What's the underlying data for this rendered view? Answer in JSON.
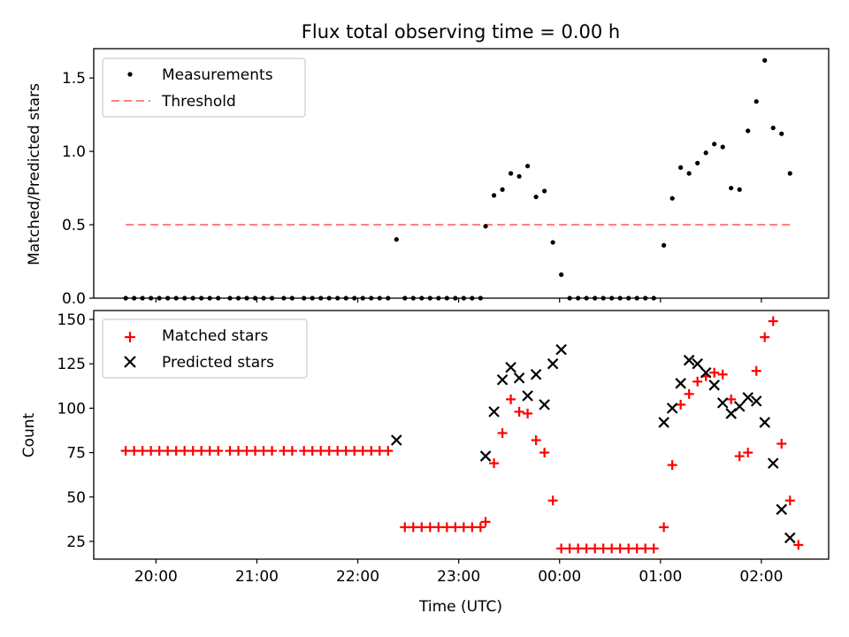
{
  "chart_data": [
    {
      "type": "scatter",
      "title": "Flux total observing time = 0.00 h",
      "ylabel": "Matched/Predicted stars",
      "xlabel": "",
      "ylim": [
        0,
        1.7
      ],
      "xlim": [
        "19:23",
        "02:40"
      ],
      "yticks": [
        0.0,
        0.5,
        1.0,
        1.5
      ],
      "ytick_labels": [
        "0.0",
        "0.5",
        "1.0",
        "1.5"
      ],
      "legend": {
        "placement": "upper-left",
        "entries": [
          "Measurements",
          "Threshold"
        ]
      },
      "threshold": {
        "name": "Threshold",
        "value": 0.5,
        "x_start": "19:42",
        "x_end": "02:17",
        "color": "#ff8080"
      },
      "series": [
        {
          "name": "Measurements",
          "color": "#000000",
          "points": [
            [
              "19:42",
              0.0
            ],
            [
              "19:47",
              0.0
            ],
            [
              "19:52",
              0.0
            ],
            [
              "19:57",
              0.0
            ],
            [
              "20:02",
              0.0
            ],
            [
              "20:07",
              0.0
            ],
            [
              "20:12",
              0.0
            ],
            [
              "20:17",
              0.0
            ],
            [
              "20:22",
              0.0
            ],
            [
              "20:27",
              0.0
            ],
            [
              "20:32",
              0.0
            ],
            [
              "20:37",
              0.0
            ],
            [
              "20:44",
              0.0
            ],
            [
              "20:49",
              0.0
            ],
            [
              "20:54",
              0.0
            ],
            [
              "20:59",
              0.0
            ],
            [
              "21:04",
              0.0
            ],
            [
              "21:09",
              0.0
            ],
            [
              "21:16",
              0.0
            ],
            [
              "21:21",
              0.0
            ],
            [
              "21:28",
              0.0
            ],
            [
              "21:33",
              0.0
            ],
            [
              "21:38",
              0.0
            ],
            [
              "21:43",
              0.0
            ],
            [
              "21:48",
              0.0
            ],
            [
              "21:53",
              0.0
            ],
            [
              "21:58",
              0.0
            ],
            [
              "22:03",
              0.0
            ],
            [
              "22:08",
              0.0
            ],
            [
              "22:13",
              0.0
            ],
            [
              "22:18",
              0.0
            ],
            [
              "22:23",
              0.4
            ],
            [
              "22:28",
              0.0
            ],
            [
              "22:33",
              0.0
            ],
            [
              "22:38",
              0.0
            ],
            [
              "22:43",
              0.0
            ],
            [
              "22:48",
              0.0
            ],
            [
              "22:53",
              0.0
            ],
            [
              "22:58",
              0.0
            ],
            [
              "23:03",
              0.0
            ],
            [
              "23:08",
              0.0
            ],
            [
              "23:13",
              0.0
            ],
            [
              "23:16",
              0.49
            ],
            [
              "23:21",
              0.7
            ],
            [
              "23:26",
              0.74
            ],
            [
              "23:31",
              0.85
            ],
            [
              "23:36",
              0.83
            ],
            [
              "23:41",
              0.9
            ],
            [
              "23:46",
              0.69
            ],
            [
              "23:51",
              0.73
            ],
            [
              "23:56",
              0.38
            ],
            [
              "00:01",
              0.16
            ],
            [
              "00:06",
              0.0
            ],
            [
              "00:11",
              0.0
            ],
            [
              "00:16",
              0.0
            ],
            [
              "00:21",
              0.0
            ],
            [
              "00:26",
              0.0
            ],
            [
              "00:31",
              0.0
            ],
            [
              "00:36",
              0.0
            ],
            [
              "00:41",
              0.0
            ],
            [
              "00:46",
              0.0
            ],
            [
              "00:51",
              0.0
            ],
            [
              "00:56",
              0.0
            ],
            [
              "01:02",
              0.36
            ],
            [
              "01:07",
              0.68
            ],
            [
              "01:12",
              0.89
            ],
            [
              "01:17",
              0.85
            ],
            [
              "01:22",
              0.92
            ],
            [
              "01:27",
              0.99
            ],
            [
              "01:32",
              1.05
            ],
            [
              "01:37",
              1.03
            ],
            [
              "01:42",
              0.75
            ],
            [
              "01:47",
              0.74
            ],
            [
              "01:52",
              1.14
            ],
            [
              "01:57",
              1.34
            ],
            [
              "02:02",
              1.62
            ],
            [
              "02:07",
              1.16
            ],
            [
              "02:12",
              1.12
            ],
            [
              "02:17",
              0.85
            ]
          ]
        }
      ]
    },
    {
      "type": "scatter",
      "title": "",
      "ylabel": "Count",
      "xlabel": "Time (UTC)",
      "ylim": [
        15,
        155
      ],
      "xlim": [
        "19:23",
        "02:40"
      ],
      "yticks": [
        25,
        50,
        75,
        100,
        125,
        150
      ],
      "ytick_labels": [
        "25",
        "50",
        "75",
        "100",
        "125",
        "150"
      ],
      "xticks": [
        "20:00",
        "21:00",
        "22:00",
        "23:00",
        "00:00",
        "01:00",
        "02:00"
      ],
      "xtick_labels": [
        "20:00",
        "21:00",
        "22:00",
        "23:00",
        "00:00",
        "01:00",
        "02:00"
      ],
      "legend": {
        "placement": "upper-left",
        "entries": [
          "Matched stars",
          "Predicted stars"
        ]
      },
      "series": [
        {
          "name": "Matched stars",
          "marker": "plus",
          "color": "#ff0000",
          "points": [
            [
              "19:42",
              76
            ],
            [
              "19:47",
              76
            ],
            [
              "19:52",
              76
            ],
            [
              "19:57",
              76
            ],
            [
              "20:02",
              76
            ],
            [
              "20:07",
              76
            ],
            [
              "20:12",
              76
            ],
            [
              "20:17",
              76
            ],
            [
              "20:22",
              76
            ],
            [
              "20:27",
              76
            ],
            [
              "20:32",
              76
            ],
            [
              "20:37",
              76
            ],
            [
              "20:44",
              76
            ],
            [
              "20:49",
              76
            ],
            [
              "20:54",
              76
            ],
            [
              "20:59",
              76
            ],
            [
              "21:04",
              76
            ],
            [
              "21:09",
              76
            ],
            [
              "21:16",
              76
            ],
            [
              "21:21",
              76
            ],
            [
              "21:28",
              76
            ],
            [
              "21:33",
              76
            ],
            [
              "21:38",
              76
            ],
            [
              "21:43",
              76
            ],
            [
              "21:48",
              76
            ],
            [
              "21:53",
              76
            ],
            [
              "21:58",
              76
            ],
            [
              "22:03",
              76
            ],
            [
              "22:08",
              76
            ],
            [
              "22:13",
              76
            ],
            [
              "22:18",
              76
            ],
            [
              "22:28",
              33
            ],
            [
              "22:33",
              33
            ],
            [
              "22:38",
              33
            ],
            [
              "22:43",
              33
            ],
            [
              "22:48",
              33
            ],
            [
              "22:53",
              33
            ],
            [
              "22:58",
              33
            ],
            [
              "23:03",
              33
            ],
            [
              "23:08",
              33
            ],
            [
              "23:13",
              33
            ],
            [
              "23:16",
              36
            ],
            [
              "23:21",
              69
            ],
            [
              "23:26",
              86
            ],
            [
              "23:31",
              105
            ],
            [
              "23:36",
              98
            ],
            [
              "23:41",
              97
            ],
            [
              "23:46",
              82
            ],
            [
              "23:51",
              75
            ],
            [
              "23:56",
              48
            ],
            [
              "00:01",
              21
            ],
            [
              "00:06",
              21
            ],
            [
              "00:11",
              21
            ],
            [
              "00:16",
              21
            ],
            [
              "00:21",
              21
            ],
            [
              "00:26",
              21
            ],
            [
              "00:31",
              21
            ],
            [
              "00:36",
              21
            ],
            [
              "00:41",
              21
            ],
            [
              "00:46",
              21
            ],
            [
              "00:51",
              21
            ],
            [
              "00:56",
              21
            ],
            [
              "01:02",
              33
            ],
            [
              "01:07",
              68
            ],
            [
              "01:12",
              102
            ],
            [
              "01:17",
              108
            ],
            [
              "01:22",
              115
            ],
            [
              "01:27",
              118
            ],
            [
              "01:32",
              120
            ],
            [
              "01:37",
              119
            ],
            [
              "01:42",
              105
            ],
            [
              "01:47",
              73
            ],
            [
              "01:52",
              75
            ],
            [
              "01:57",
              121
            ],
            [
              "02:02",
              140
            ],
            [
              "02:07",
              149
            ],
            [
              "02:12",
              80
            ],
            [
              "02:17",
              48
            ],
            [
              "02:22",
              23
            ]
          ]
        },
        {
          "name": "Predicted stars",
          "marker": "x",
          "color": "#000000",
          "points": [
            [
              "22:23",
              82
            ],
            [
              "23:16",
              73
            ],
            [
              "23:21",
              98
            ],
            [
              "23:26",
              116
            ],
            [
              "23:31",
              123
            ],
            [
              "23:36",
              117
            ],
            [
              "23:41",
              107
            ],
            [
              "23:46",
              119
            ],
            [
              "23:51",
              102
            ],
            [
              "23:56",
              125
            ],
            [
              "00:01",
              133
            ],
            [
              "01:02",
              92
            ],
            [
              "01:07",
              100
            ],
            [
              "01:12",
              114
            ],
            [
              "01:17",
              127
            ],
            [
              "01:22",
              125
            ],
            [
              "01:27",
              120
            ],
            [
              "01:32",
              113
            ],
            [
              "01:37",
              103
            ],
            [
              "01:42",
              97
            ],
            [
              "01:47",
              101
            ],
            [
              "01:52",
              106
            ],
            [
              "01:57",
              104
            ],
            [
              "02:02",
              92
            ],
            [
              "02:07",
              69
            ],
            [
              "02:12",
              43
            ],
            [
              "02:17",
              27
            ]
          ]
        }
      ]
    }
  ]
}
